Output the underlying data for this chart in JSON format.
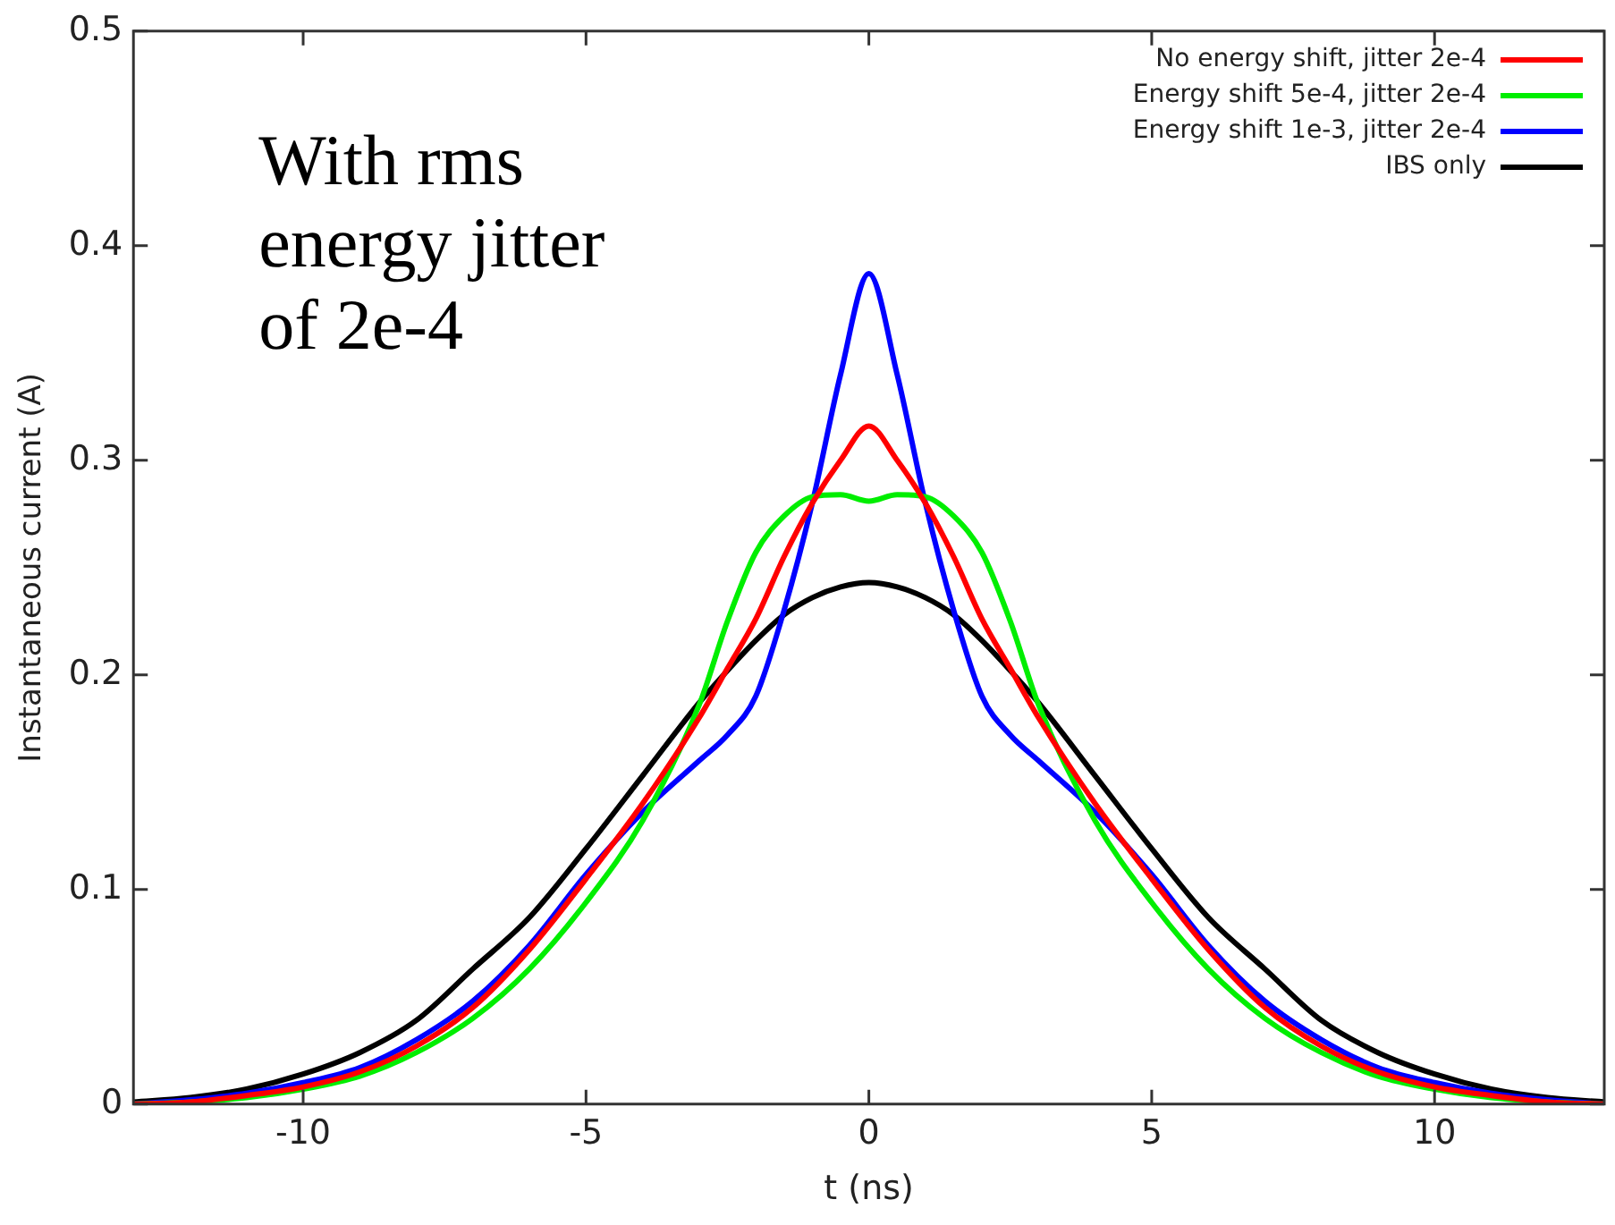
{
  "chart_data": {
    "type": "line",
    "xlabel": "t (ns)",
    "ylabel": "Instantaneous current (A)",
    "xlim": [
      -13,
      13
    ],
    "ylim": [
      0,
      0.5
    ],
    "xticks": [
      -10,
      -5,
      0,
      5,
      10
    ],
    "yticks": [
      0,
      0.1,
      0.2,
      0.3,
      0.4,
      0.5
    ],
    "grid": false,
    "legend": "top right",
    "marker": "none",
    "line_style": "solid",
    "annotations": [
      "With rms energy jitter of 2e-4"
    ],
    "x": [
      -13,
      -12,
      -11,
      -10,
      -9,
      -8,
      -7,
      -6,
      -5,
      -4,
      -3,
      -2.5,
      -2,
      -1.5,
      -1,
      -0.5,
      0,
      0.5,
      1,
      1.5,
      2,
      2.5,
      3,
      4,
      5,
      6,
      7,
      8,
      9,
      10,
      11,
      12,
      13
    ],
    "series": [
      {
        "name": "No energy shift, jitter 2e-4",
        "color": "#ff0000",
        "values": [
          0,
          0.001,
          0.004,
          0.008,
          0.015,
          0.027,
          0.045,
          0.072,
          0.105,
          0.14,
          0.18,
          0.203,
          0.226,
          0.255,
          0.28,
          0.3,
          0.316,
          0.3,
          0.28,
          0.255,
          0.226,
          0.203,
          0.18,
          0.14,
          0.105,
          0.072,
          0.045,
          0.027,
          0.015,
          0.008,
          0.004,
          0.001,
          0
        ]
      },
      {
        "name": "Energy shift 5e-4, jitter 2e-4",
        "color": "#00ee00",
        "values": [
          0,
          0.001,
          0.003,
          0.007,
          0.013,
          0.024,
          0.04,
          0.063,
          0.094,
          0.132,
          0.186,
          0.225,
          0.257,
          0.274,
          0.283,
          0.284,
          0.281,
          0.284,
          0.283,
          0.274,
          0.257,
          0.225,
          0.186,
          0.132,
          0.094,
          0.063,
          0.04,
          0.024,
          0.013,
          0.007,
          0.003,
          0.001,
          0
        ]
      },
      {
        "name": "Energy shift 1e-3, jitter 2e-4",
        "color": "#0000ff",
        "values": [
          0,
          0.002,
          0.005,
          0.01,
          0.017,
          0.03,
          0.048,
          0.074,
          0.107,
          0.136,
          0.16,
          0.172,
          0.19,
          0.23,
          0.28,
          0.34,
          0.387,
          0.34,
          0.28,
          0.23,
          0.19,
          0.172,
          0.16,
          0.136,
          0.107,
          0.074,
          0.048,
          0.03,
          0.017,
          0.01,
          0.005,
          0.002,
          0
        ]
      },
      {
        "name": "IBS only",
        "color": "#000000",
        "values": [
          0.001,
          0.003,
          0.007,
          0.014,
          0.024,
          0.039,
          0.063,
          0.087,
          0.119,
          0.153,
          0.187,
          0.202,
          0.216,
          0.228,
          0.236,
          0.241,
          0.243,
          0.241,
          0.236,
          0.228,
          0.216,
          0.202,
          0.187,
          0.153,
          0.119,
          0.087,
          0.063,
          0.039,
          0.024,
          0.014,
          0.007,
          0.003,
          0.001
        ]
      }
    ]
  }
}
